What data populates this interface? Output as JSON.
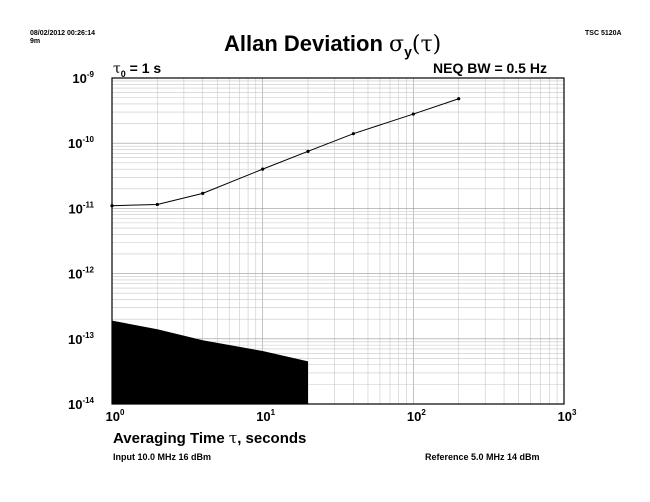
{
  "header": {
    "timestamp": "08/02/2012 00:26:14",
    "duration": "9m",
    "instrument": "TSC 5120A"
  },
  "labels": {
    "title_prefix": "Allan Deviation ",
    "title_symbol": "σ",
    "title_sub": "y",
    "title_arg": "(τ)",
    "tau_symbol": "τ",
    "tau_sub": "0",
    "tau_value": " = 1 s",
    "bandwidth": "NEQ BW = 0.5 Hz",
    "xlabel_pre": "Averaging Time ",
    "xlabel_sym": "τ",
    "xlabel_post": ", seconds",
    "input_info": "Input 10.0 MHz 16 dBm",
    "reference_info": "Reference 5.0 MHz 14 dBm"
  },
  "chart_data": {
    "type": "line",
    "title": "Allan Deviation σy(τ)",
    "xlabel": "Averaging Time τ, seconds",
    "ylabel": "",
    "x_scale": "log",
    "y_scale": "log",
    "xlim": [
      1,
      1000
    ],
    "ylim": [
      1e-14,
      1e-09
    ],
    "grid": true,
    "x_ticks": [
      {
        "base": "10",
        "exp": "0"
      },
      {
        "base": "10",
        "exp": "1"
      },
      {
        "base": "10",
        "exp": "2"
      },
      {
        "base": "10",
        "exp": "3"
      }
    ],
    "y_ticks": [
      {
        "base": "10",
        "exp": "-9"
      },
      {
        "base": "10",
        "exp": "-10"
      },
      {
        "base": "10",
        "exp": "-11"
      },
      {
        "base": "10",
        "exp": "-12"
      },
      {
        "base": "10",
        "exp": "-13"
      },
      {
        "base": "10",
        "exp": "-14"
      }
    ],
    "series": [
      {
        "x": [
          1,
          2,
          4,
          10,
          20,
          40,
          100,
          200
        ],
        "y": [
          1.1e-11,
          1.15e-11,
          1.7e-11,
          4e-11,
          7.5e-11,
          1.4e-10,
          2.8e-10,
          4.8e-10
        ],
        "color": "#000000"
      }
    ],
    "noise_floor": {
      "x": [
        1,
        2,
        4,
        10,
        20
      ],
      "y": [
        1.9e-13,
        1.4e-13,
        9.5e-14,
        6.5e-14,
        4.5e-14
      ],
      "color": "#000000"
    }
  }
}
